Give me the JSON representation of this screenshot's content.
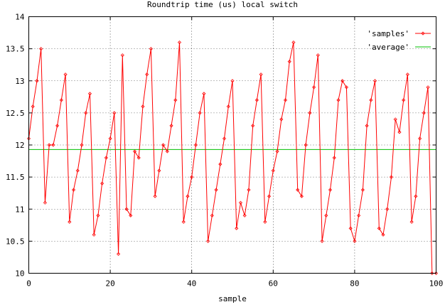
{
  "chart_data": {
    "type": "line",
    "title": "Roundtrip time (us) local switch",
    "xlabel": "sample",
    "ylabel": "",
    "xlim": [
      0,
      100
    ],
    "ylim": [
      10,
      14
    ],
    "xticks": [
      0,
      20,
      40,
      60,
      80,
      100
    ],
    "yticks": [
      10,
      10.5,
      11,
      11.5,
      12,
      12.5,
      13,
      13.5,
      14
    ],
    "x_tick_labels": [
      "0",
      "20",
      "40",
      "60",
      "80",
      "100"
    ],
    "y_tick_labels": [
      "10",
      "10.5",
      "11",
      "11.5",
      "12",
      "12.5",
      "13",
      "13.5",
      "14"
    ],
    "grid": true,
    "legend_position": "top-right",
    "legend": [
      "'samples'",
      "'average'"
    ],
    "series": [
      {
        "name": "'samples'",
        "color": "#ff0000",
        "marker": "diamond",
        "x": [
          0,
          1,
          2,
          3,
          4,
          5,
          6,
          7,
          8,
          9,
          10,
          11,
          12,
          13,
          14,
          15,
          16,
          17,
          18,
          19,
          20,
          21,
          22,
          23,
          24,
          25,
          26,
          27,
          28,
          29,
          30,
          31,
          32,
          33,
          34,
          35,
          36,
          37,
          38,
          39,
          40,
          41,
          42,
          43,
          44,
          45,
          46,
          47,
          48,
          49,
          50,
          51,
          52,
          53,
          54,
          55,
          56,
          57,
          58,
          59,
          60,
          61,
          62,
          63,
          64,
          65,
          66,
          67,
          68,
          69,
          70,
          71,
          72,
          73,
          74,
          75,
          76,
          77,
          78,
          79,
          80,
          81,
          82,
          83,
          84,
          85,
          86,
          87,
          88,
          89,
          90,
          91,
          92,
          93,
          94,
          95,
          96,
          97,
          98,
          99,
          100
        ],
        "y": [
          12.1,
          12.6,
          13.0,
          13.5,
          11.1,
          12.0,
          12.0,
          12.3,
          12.7,
          13.1,
          10.8,
          11.3,
          11.6,
          12.0,
          12.5,
          12.8,
          10.6,
          10.9,
          11.4,
          11.8,
          12.1,
          12.5,
          10.3,
          13.4,
          11.0,
          10.9,
          11.9,
          11.8,
          12.6,
          13.1,
          13.5,
          11.2,
          11.6,
          12.0,
          11.9,
          12.3,
          12.7,
          13.6,
          10.8,
          11.2,
          11.5,
          12.0,
          12.5,
          12.8,
          10.5,
          10.9,
          11.3,
          11.7,
          12.1,
          12.6,
          13.0,
          10.7,
          11.1,
          10.9,
          11.3,
          12.3,
          12.7,
          13.1,
          10.8,
          11.2,
          11.6,
          11.9,
          12.4,
          12.7,
          13.3,
          13.6,
          11.3,
          11.2,
          12.0,
          12.5,
          12.9,
          13.4,
          10.5,
          10.9,
          11.3,
          11.8,
          12.7,
          13.0,
          12.9,
          10.7,
          10.5,
          10.9,
          11.3,
          12.3,
          12.7,
          13.0,
          10.7,
          10.6,
          11.0,
          11.5,
          12.4,
          12.2,
          12.7,
          13.1,
          10.8,
          11.2,
          12.1,
          12.5,
          12.9,
          10.0,
          10.0
        ]
      },
      {
        "name": "'average'",
        "color": "#00c000",
        "y_constant": 11.93
      }
    ]
  }
}
